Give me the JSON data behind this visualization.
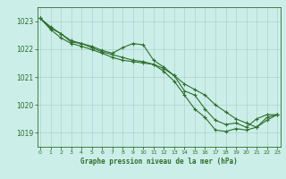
{
  "bg_color": "#cceee8",
  "grid_color": "#aad4ce",
  "line_color": "#2d6e2d",
  "marker_color": "#2d6e2d",
  "xlabel": "Graphe pression niveau de la mer (hPa)",
  "xlabel_color": "#2d6e2d",
  "tick_color": "#2d6e2d",
  "ylim": [
    1018.5,
    1023.5
  ],
  "xlim": [
    -0.3,
    23.3
  ],
  "yticks": [
    1019,
    1020,
    1021,
    1022,
    1023
  ],
  "xticks": [
    0,
    1,
    2,
    3,
    4,
    5,
    6,
    7,
    8,
    9,
    10,
    11,
    12,
    13,
    14,
    15,
    16,
    17,
    18,
    19,
    20,
    21,
    22,
    23
  ],
  "series": [
    [
      1023.1,
      1022.75,
      1022.55,
      1022.25,
      1022.2,
      1022.1,
      1021.95,
      1021.85,
      1022.05,
      1022.2,
      1022.15,
      1021.6,
      1021.35,
      1021.05,
      1020.5,
      1020.35,
      1019.85,
      1019.45,
      1019.3,
      1019.35,
      1019.2,
      1019.5,
      1019.65,
      1019.65
    ],
    [
      1023.1,
      1022.8,
      1022.55,
      1022.3,
      1022.2,
      1022.05,
      1021.9,
      1021.8,
      1021.7,
      1021.6,
      1021.55,
      1021.45,
      1021.3,
      1021.05,
      1020.75,
      1020.55,
      1020.35,
      1020.0,
      1019.75,
      1019.5,
      1019.35,
      1019.2,
      1019.45,
      1019.65
    ],
    [
      1023.1,
      1022.7,
      1022.4,
      1022.2,
      1022.1,
      1021.98,
      1021.85,
      1021.7,
      1021.6,
      1021.55,
      1021.5,
      1021.45,
      1021.2,
      1020.85,
      1020.35,
      1019.85,
      1019.55,
      1019.1,
      1019.05,
      1019.15,
      1019.1,
      1019.2,
      1019.55,
      1019.65
    ]
  ]
}
